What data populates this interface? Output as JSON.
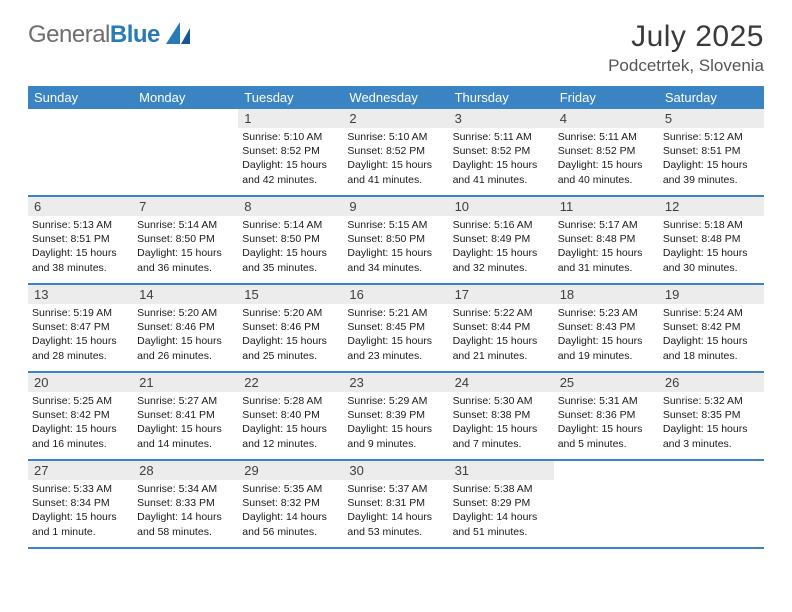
{
  "brand": {
    "general": "General",
    "blue": "Blue"
  },
  "title": "July 2025",
  "location": "Podcetrtek, Slovenia",
  "colors": {
    "header_bg": "#3a84c4",
    "header_text": "#ffffff",
    "daynum_bg": "#ececec",
    "daynum_text": "#3f3f3f",
    "body_text": "#1a1a1a",
    "row_border": "#3a84c4",
    "title_color": "#3a3a3a",
    "subtitle_color": "#555555",
    "logo_gray": "#6e6e6e",
    "logo_blue": "#2a7ab8"
  },
  "typography": {
    "title_fontsize": 30,
    "subtitle_fontsize": 17,
    "header_fontsize": 13,
    "daynum_fontsize": 13,
    "body_fontsize": 10.5,
    "font_family": "Arial"
  },
  "weekdays": [
    "Sunday",
    "Monday",
    "Tuesday",
    "Wednesday",
    "Thursday",
    "Friday",
    "Saturday"
  ],
  "weeks": [
    [
      null,
      null,
      {
        "n": "1",
        "sr": "Sunrise: 5:10 AM",
        "ss": "Sunset: 8:52 PM",
        "d1": "Daylight: 15 hours",
        "d2": "and 42 minutes."
      },
      {
        "n": "2",
        "sr": "Sunrise: 5:10 AM",
        "ss": "Sunset: 8:52 PM",
        "d1": "Daylight: 15 hours",
        "d2": "and 41 minutes."
      },
      {
        "n": "3",
        "sr": "Sunrise: 5:11 AM",
        "ss": "Sunset: 8:52 PM",
        "d1": "Daylight: 15 hours",
        "d2": "and 41 minutes."
      },
      {
        "n": "4",
        "sr": "Sunrise: 5:11 AM",
        "ss": "Sunset: 8:52 PM",
        "d1": "Daylight: 15 hours",
        "d2": "and 40 minutes."
      },
      {
        "n": "5",
        "sr": "Sunrise: 5:12 AM",
        "ss": "Sunset: 8:51 PM",
        "d1": "Daylight: 15 hours",
        "d2": "and 39 minutes."
      }
    ],
    [
      {
        "n": "6",
        "sr": "Sunrise: 5:13 AM",
        "ss": "Sunset: 8:51 PM",
        "d1": "Daylight: 15 hours",
        "d2": "and 38 minutes."
      },
      {
        "n": "7",
        "sr": "Sunrise: 5:14 AM",
        "ss": "Sunset: 8:50 PM",
        "d1": "Daylight: 15 hours",
        "d2": "and 36 minutes."
      },
      {
        "n": "8",
        "sr": "Sunrise: 5:14 AM",
        "ss": "Sunset: 8:50 PM",
        "d1": "Daylight: 15 hours",
        "d2": "and 35 minutes."
      },
      {
        "n": "9",
        "sr": "Sunrise: 5:15 AM",
        "ss": "Sunset: 8:50 PM",
        "d1": "Daylight: 15 hours",
        "d2": "and 34 minutes."
      },
      {
        "n": "10",
        "sr": "Sunrise: 5:16 AM",
        "ss": "Sunset: 8:49 PM",
        "d1": "Daylight: 15 hours",
        "d2": "and 32 minutes."
      },
      {
        "n": "11",
        "sr": "Sunrise: 5:17 AM",
        "ss": "Sunset: 8:48 PM",
        "d1": "Daylight: 15 hours",
        "d2": "and 31 minutes."
      },
      {
        "n": "12",
        "sr": "Sunrise: 5:18 AM",
        "ss": "Sunset: 8:48 PM",
        "d1": "Daylight: 15 hours",
        "d2": "and 30 minutes."
      }
    ],
    [
      {
        "n": "13",
        "sr": "Sunrise: 5:19 AM",
        "ss": "Sunset: 8:47 PM",
        "d1": "Daylight: 15 hours",
        "d2": "and 28 minutes."
      },
      {
        "n": "14",
        "sr": "Sunrise: 5:20 AM",
        "ss": "Sunset: 8:46 PM",
        "d1": "Daylight: 15 hours",
        "d2": "and 26 minutes."
      },
      {
        "n": "15",
        "sr": "Sunrise: 5:20 AM",
        "ss": "Sunset: 8:46 PM",
        "d1": "Daylight: 15 hours",
        "d2": "and 25 minutes."
      },
      {
        "n": "16",
        "sr": "Sunrise: 5:21 AM",
        "ss": "Sunset: 8:45 PM",
        "d1": "Daylight: 15 hours",
        "d2": "and 23 minutes."
      },
      {
        "n": "17",
        "sr": "Sunrise: 5:22 AM",
        "ss": "Sunset: 8:44 PM",
        "d1": "Daylight: 15 hours",
        "d2": "and 21 minutes."
      },
      {
        "n": "18",
        "sr": "Sunrise: 5:23 AM",
        "ss": "Sunset: 8:43 PM",
        "d1": "Daylight: 15 hours",
        "d2": "and 19 minutes."
      },
      {
        "n": "19",
        "sr": "Sunrise: 5:24 AM",
        "ss": "Sunset: 8:42 PM",
        "d1": "Daylight: 15 hours",
        "d2": "and 18 minutes."
      }
    ],
    [
      {
        "n": "20",
        "sr": "Sunrise: 5:25 AM",
        "ss": "Sunset: 8:42 PM",
        "d1": "Daylight: 15 hours",
        "d2": "and 16 minutes."
      },
      {
        "n": "21",
        "sr": "Sunrise: 5:27 AM",
        "ss": "Sunset: 8:41 PM",
        "d1": "Daylight: 15 hours",
        "d2": "and 14 minutes."
      },
      {
        "n": "22",
        "sr": "Sunrise: 5:28 AM",
        "ss": "Sunset: 8:40 PM",
        "d1": "Daylight: 15 hours",
        "d2": "and 12 minutes."
      },
      {
        "n": "23",
        "sr": "Sunrise: 5:29 AM",
        "ss": "Sunset: 8:39 PM",
        "d1": "Daylight: 15 hours",
        "d2": "and 9 minutes."
      },
      {
        "n": "24",
        "sr": "Sunrise: 5:30 AM",
        "ss": "Sunset: 8:38 PM",
        "d1": "Daylight: 15 hours",
        "d2": "and 7 minutes."
      },
      {
        "n": "25",
        "sr": "Sunrise: 5:31 AM",
        "ss": "Sunset: 8:36 PM",
        "d1": "Daylight: 15 hours",
        "d2": "and 5 minutes."
      },
      {
        "n": "26",
        "sr": "Sunrise: 5:32 AM",
        "ss": "Sunset: 8:35 PM",
        "d1": "Daylight: 15 hours",
        "d2": "and 3 minutes."
      }
    ],
    [
      {
        "n": "27",
        "sr": "Sunrise: 5:33 AM",
        "ss": "Sunset: 8:34 PM",
        "d1": "Daylight: 15 hours",
        "d2": "and 1 minute."
      },
      {
        "n": "28",
        "sr": "Sunrise: 5:34 AM",
        "ss": "Sunset: 8:33 PM",
        "d1": "Daylight: 14 hours",
        "d2": "and 58 minutes."
      },
      {
        "n": "29",
        "sr": "Sunrise: 5:35 AM",
        "ss": "Sunset: 8:32 PM",
        "d1": "Daylight: 14 hours",
        "d2": "and 56 minutes."
      },
      {
        "n": "30",
        "sr": "Sunrise: 5:37 AM",
        "ss": "Sunset: 8:31 PM",
        "d1": "Daylight: 14 hours",
        "d2": "and 53 minutes."
      },
      {
        "n": "31",
        "sr": "Sunrise: 5:38 AM",
        "ss": "Sunset: 8:29 PM",
        "d1": "Daylight: 14 hours",
        "d2": "and 51 minutes."
      },
      null,
      null
    ]
  ]
}
